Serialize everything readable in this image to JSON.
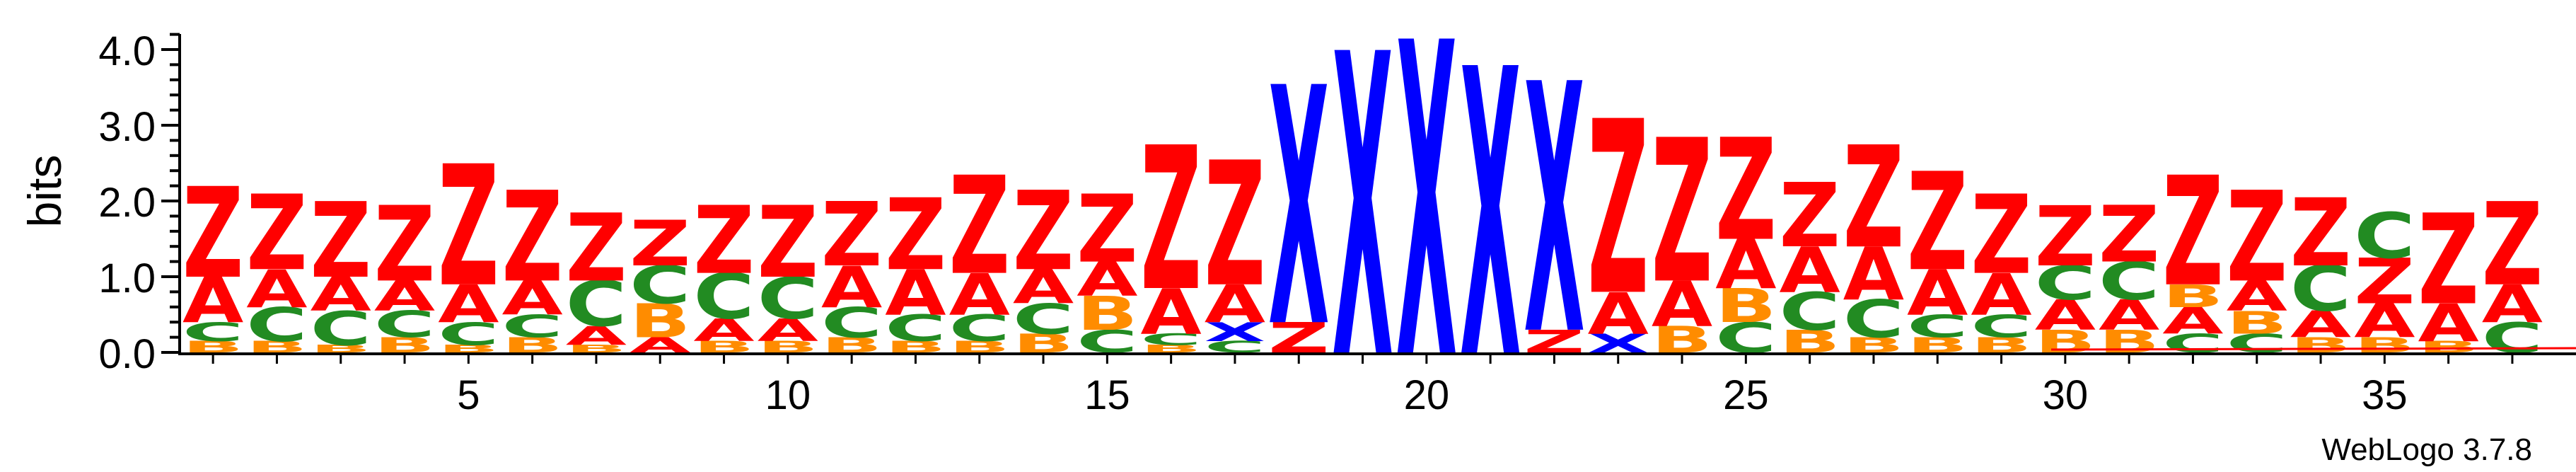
{
  "chart_data": {
    "type": "sequence-logo",
    "ylabel": "bits",
    "ylim": [
      0,
      4.3
    ],
    "yticks": [
      "0.0",
      "1.0",
      "2.0",
      "3.0",
      "4.0"
    ],
    "xticks": [
      "5",
      "10",
      "15",
      "20",
      "25",
      "30",
      "35"
    ],
    "footer": "WebLogo 3.7.8",
    "colors": {
      "A": "#ff0000",
      "Z": "#ff0000",
      "C": "#228b22",
      "B": "#ff8c00",
      "X": "#0000ff"
    },
    "positions": [
      [
        [
          "B",
          0.15
        ],
        [
          "C",
          0.25
        ],
        [
          "A",
          0.6
        ],
        [
          "Z",
          1.2
        ]
      ],
      [
        [
          "B",
          0.15
        ],
        [
          "C",
          0.45
        ],
        [
          "A",
          0.5
        ],
        [
          "Z",
          1.0
        ]
      ],
      [
        [
          "B",
          0.1
        ],
        [
          "C",
          0.45
        ],
        [
          "A",
          0.45
        ],
        [
          "Z",
          1.0
        ]
      ],
      [
        [
          "B",
          0.2
        ],
        [
          "C",
          0.35
        ],
        [
          "A",
          0.4
        ],
        [
          "Z",
          1.0
        ]
      ],
      [
        [
          "B",
          0.1
        ],
        [
          "C",
          0.3
        ],
        [
          "A",
          0.5
        ],
        [
          "Z",
          1.6
        ]
      ],
      [
        [
          "B",
          0.2
        ],
        [
          "C",
          0.3
        ],
        [
          "A",
          0.45
        ],
        [
          "Z",
          1.2
        ]
      ],
      [
        [
          "B",
          0.1
        ],
        [
          "A",
          0.25
        ],
        [
          "C",
          0.6
        ],
        [
          "Z",
          0.9
        ]
      ],
      [
        [
          "A",
          0.2
        ],
        [
          "B",
          0.45
        ],
        [
          "C",
          0.5
        ],
        [
          "Z",
          0.6
        ]
      ],
      [
        [
          "B",
          0.15
        ],
        [
          "A",
          0.3
        ],
        [
          "C",
          0.6
        ],
        [
          "Z",
          0.9
        ]
      ],
      [
        [
          "B",
          0.15
        ],
        [
          "A",
          0.3
        ],
        [
          "C",
          0.55
        ],
        [
          "Z",
          0.95
        ]
      ],
      [
        [
          "B",
          0.2
        ],
        [
          "C",
          0.4
        ],
        [
          "A",
          0.55
        ],
        [
          "Z",
          0.85
        ]
      ],
      [
        [
          "B",
          0.15
        ],
        [
          "C",
          0.35
        ],
        [
          "A",
          0.6
        ],
        [
          "Z",
          0.95
        ]
      ],
      [
        [
          "B",
          0.15
        ],
        [
          "C",
          0.35
        ],
        [
          "A",
          0.55
        ],
        [
          "Z",
          1.3
        ]
      ],
      [
        [
          "B",
          0.25
        ],
        [
          "C",
          0.4
        ],
        [
          "A",
          0.45
        ],
        [
          "Z",
          1.05
        ]
      ],
      [
        [
          "C",
          0.3
        ],
        [
          "B",
          0.45
        ],
        [
          "A",
          0.45
        ],
        [
          "Z",
          0.9
        ]
      ],
      [
        [
          "B",
          0.1
        ],
        [
          "C",
          0.15
        ],
        [
          "A",
          0.6
        ],
        [
          "Z",
          1.9
        ]
      ],
      [
        [
          "C",
          0.15
        ],
        [
          "X",
          0.25
        ],
        [
          "A",
          0.5
        ],
        [
          "Z",
          1.65
        ]
      ],
      [
        [
          "Z",
          0.4
        ],
        [
          "X",
          3.15
        ]
      ],
      [
        [
          "X",
          4.0
        ]
      ],
      [
        [
          "X",
          4.15
        ]
      ],
      [
        [
          "X",
          3.8
        ]
      ],
      [
        [
          "Z",
          0.3
        ],
        [
          "X",
          3.3
        ]
      ],
      [
        [
          "X",
          0.25
        ],
        [
          "A",
          0.55
        ],
        [
          "Z",
          2.3
        ]
      ],
      [
        [
          "B",
          0.35
        ],
        [
          "A",
          0.6
        ],
        [
          "Z",
          1.9
        ]
      ],
      [
        [
          "C",
          0.4
        ],
        [
          "B",
          0.45
        ],
        [
          "A",
          0.65
        ],
        [
          "Z",
          1.35
        ]
      ],
      [
        [
          "B",
          0.3
        ],
        [
          "C",
          0.5
        ],
        [
          "A",
          0.6
        ],
        [
          "Z",
          0.85
        ]
      ],
      [
        [
          "B",
          0.2
        ],
        [
          "C",
          0.5
        ],
        [
          "A",
          0.7
        ],
        [
          "Z",
          1.35
        ]
      ],
      [
        [
          "B",
          0.2
        ],
        [
          "C",
          0.3
        ],
        [
          "A",
          0.6
        ],
        [
          "Z",
          1.3
        ]
      ],
      [
        [
          "B",
          0.2
        ],
        [
          "C",
          0.3
        ],
        [
          "A",
          0.55
        ],
        [
          "Z",
          1.05
        ]
      ],
      [
        [
          "B",
          0.3
        ],
        [
          "A",
          0.4
        ],
        [
          "C",
          0.45
        ],
        [
          "Z",
          0.8
        ]
      ],
      [
        [
          "B",
          0.3
        ],
        [
          "A",
          0.4
        ],
        [
          "C",
          0.5
        ],
        [
          "Z",
          0.75
        ]
      ],
      [
        [
          "C",
          0.25
        ],
        [
          "A",
          0.35
        ],
        [
          "B",
          0.3
        ],
        [
          "Z",
          1.45
        ]
      ],
      [
        [
          "C",
          0.25
        ],
        [
          "B",
          0.3
        ],
        [
          "A",
          0.4
        ],
        [
          "Z",
          1.2
        ]
      ],
      [
        [
          "B",
          0.2
        ],
        [
          "A",
          0.35
        ],
        [
          "C",
          0.6
        ],
        [
          "Z",
          0.9
        ]
      ],
      [
        [
          "B",
          0.2
        ],
        [
          "A",
          0.45
        ],
        [
          "Z",
          0.6
        ],
        [
          "C",
          0.6
        ]
      ],
      [
        [
          "B",
          0.15
        ],
        [
          "A",
          0.5
        ],
        [
          "Z",
          1.2
        ]
      ],
      [
        [
          "C",
          0.4
        ],
        [
          "A",
          0.5
        ],
        [
          "Z",
          1.1
        ]
      ]
    ]
  }
}
